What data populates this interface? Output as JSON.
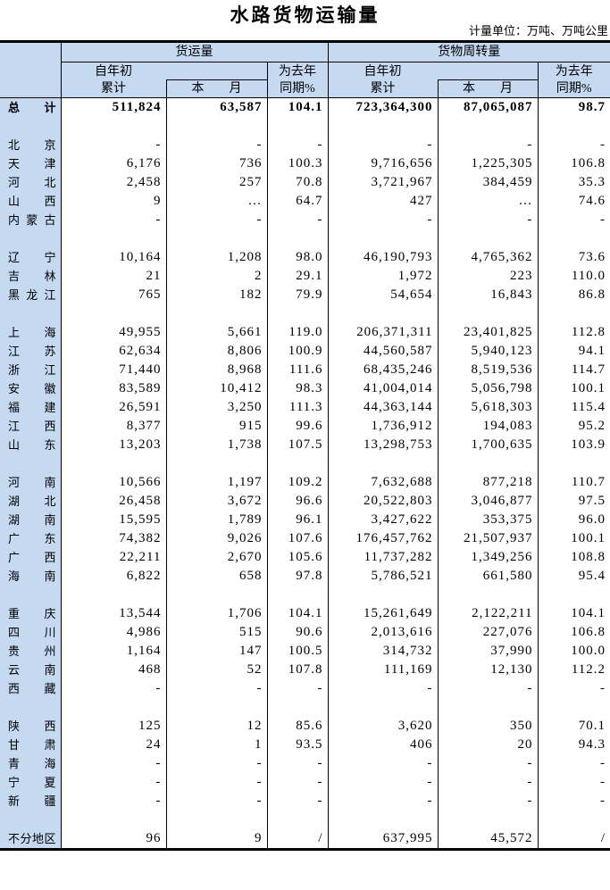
{
  "title": "水路货物运输量",
  "unit_note": "计量单位：万吨、万吨公里",
  "colors": {
    "header_fill": "#c5d9f1",
    "border": "#000000"
  },
  "header": {
    "group1": "货运量",
    "group2": "货物周转量",
    "cum_line1": "自年初",
    "cum_line2": "累计",
    "month": "本月",
    "yoy_line1": "为去年",
    "yoy_line2": "同期%"
  },
  "table": {
    "rows": [
      {
        "region": "总计",
        "bold": true,
        "values": [
          "511,824",
          "63,587",
          "104.1",
          "723,364,300",
          "87,065,087",
          "98.7"
        ]
      },
      {
        "blank": true
      },
      {
        "region": "北京",
        "values": [
          "-",
          "-",
          "-",
          "-",
          "-",
          "-"
        ]
      },
      {
        "region": "天津",
        "values": [
          "6,176",
          "736",
          "100.3",
          "9,716,656",
          "1,225,305",
          "106.8"
        ]
      },
      {
        "region": "河北",
        "values": [
          "2,458",
          "257",
          "70.8",
          "3,721,967",
          "384,459",
          "35.3"
        ]
      },
      {
        "region": "山西",
        "values": [
          "9",
          "…",
          "64.7",
          "427",
          "…",
          "74.6"
        ]
      },
      {
        "region": "内蒙古",
        "values": [
          "-",
          "-",
          "-",
          "-",
          "-",
          "-"
        ]
      },
      {
        "blank": true
      },
      {
        "region": "辽宁",
        "values": [
          "10,164",
          "1,208",
          "98.0",
          "46,190,793",
          "4,765,362",
          "73.6"
        ]
      },
      {
        "region": "吉林",
        "values": [
          "21",
          "2",
          "29.1",
          "1,972",
          "223",
          "110.0"
        ]
      },
      {
        "region": "黑龙江",
        "values": [
          "765",
          "182",
          "79.9",
          "54,654",
          "16,843",
          "86.8"
        ]
      },
      {
        "blank": true
      },
      {
        "region": "上海",
        "values": [
          "49,955",
          "5,661",
          "119.0",
          "206,371,311",
          "23,401,825",
          "112.8"
        ]
      },
      {
        "region": "江苏",
        "values": [
          "62,634",
          "8,806",
          "100.9",
          "44,560,587",
          "5,940,123",
          "94.1"
        ]
      },
      {
        "region": "浙江",
        "values": [
          "71,440",
          "8,968",
          "111.6",
          "68,435,246",
          "8,519,536",
          "114.7"
        ]
      },
      {
        "region": "安徽",
        "values": [
          "83,589",
          "10,412",
          "98.3",
          "41,004,014",
          "5,056,798",
          "100.1"
        ]
      },
      {
        "region": "福建",
        "values": [
          "26,591",
          "3,250",
          "111.3",
          "44,363,144",
          "5,618,303",
          "115.4"
        ]
      },
      {
        "region": "江西",
        "values": [
          "8,377",
          "915",
          "99.6",
          "1,736,912",
          "194,083",
          "95.2"
        ]
      },
      {
        "region": "山东",
        "values": [
          "13,203",
          "1,738",
          "107.5",
          "13,298,753",
          "1,700,635",
          "103.9"
        ]
      },
      {
        "blank": true
      },
      {
        "region": "河南",
        "values": [
          "10,566",
          "1,197",
          "109.2",
          "7,632,688",
          "877,218",
          "110.7"
        ]
      },
      {
        "region": "湖北",
        "values": [
          "26,458",
          "3,672",
          "96.6",
          "20,522,803",
          "3,046,877",
          "97.5"
        ]
      },
      {
        "region": "湖南",
        "values": [
          "15,595",
          "1,789",
          "96.1",
          "3,427,622",
          "353,375",
          "96.0"
        ]
      },
      {
        "region": "广东",
        "values": [
          "74,382",
          "9,026",
          "107.6",
          "176,457,762",
          "21,507,937",
          "100.1"
        ]
      },
      {
        "region": "广西",
        "values": [
          "22,211",
          "2,670",
          "105.6",
          "11,737,282",
          "1,349,256",
          "108.8"
        ]
      },
      {
        "region": "海南",
        "values": [
          "6,822",
          "658",
          "97.8",
          "5,786,521",
          "661,580",
          "95.4"
        ]
      },
      {
        "blank": true
      },
      {
        "region": "重庆",
        "values": [
          "13,544",
          "1,706",
          "104.1",
          "15,261,649",
          "2,122,211",
          "104.1"
        ]
      },
      {
        "region": "四川",
        "values": [
          "4,986",
          "515",
          "90.6",
          "2,013,616",
          "227,076",
          "106.8"
        ]
      },
      {
        "region": "贵州",
        "values": [
          "1,164",
          "147",
          "100.5",
          "314,732",
          "37,990",
          "100.0"
        ]
      },
      {
        "region": "云南",
        "values": [
          "468",
          "52",
          "107.8",
          "111,169",
          "12,130",
          "112.2"
        ]
      },
      {
        "region": "西藏",
        "values": [
          "-",
          "-",
          "-",
          "-",
          "-",
          "-"
        ]
      },
      {
        "blank": true
      },
      {
        "region": "陕西",
        "values": [
          "125",
          "12",
          "85.6",
          "3,620",
          "350",
          "70.1"
        ]
      },
      {
        "region": "甘肃",
        "values": [
          "24",
          "1",
          "93.5",
          "406",
          "20",
          "94.3"
        ]
      },
      {
        "region": "青海",
        "values": [
          "-",
          "-",
          "-",
          "-",
          "-",
          "-"
        ]
      },
      {
        "region": "宁夏",
        "values": [
          "-",
          "-",
          "-",
          "-",
          "-",
          "-"
        ]
      },
      {
        "region": "新疆",
        "values": [
          "-",
          "-",
          "-",
          "-",
          "-",
          "-"
        ]
      },
      {
        "blank": true
      },
      {
        "region": "不分地区",
        "values": [
          "96",
          "9",
          "/",
          "637,995",
          "45,572",
          "/"
        ]
      }
    ]
  }
}
